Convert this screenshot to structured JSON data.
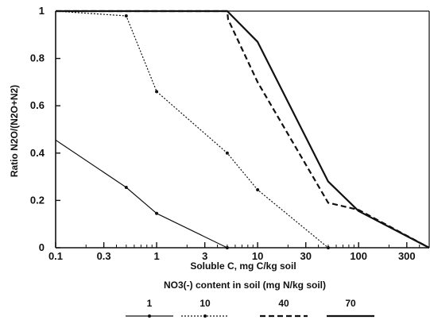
{
  "chart_data": {
    "type": "line",
    "xlabel": "Soluble C, mg C/kg soil",
    "ylabel": "Ratio N2O/(N2O+N2)",
    "x_scale": "log",
    "xlim": [
      0.1,
      500
    ],
    "ylim": [
      0,
      1
    ],
    "x_ticks": [
      0.1,
      0.3,
      1,
      3,
      10,
      30,
      100,
      300
    ],
    "x_tick_labels": [
      "0.1",
      "0.3",
      "1",
      "3",
      "10",
      "30",
      "100",
      "300"
    ],
    "y_ticks": [
      0,
      0.2,
      0.4,
      0.6,
      0.8,
      1
    ],
    "y_tick_labels": [
      "0",
      "0.2",
      "0.4",
      "0.6",
      "0.8",
      "1"
    ],
    "grid": false,
    "legend_title": "NO3(-) content in soil (mg N/kg soil)",
    "legend_position": "bottom",
    "series": [
      {
        "name": "1",
        "style": "solid-thin-markers",
        "color": "#111111",
        "points": [
          [
            0.1,
            0.455
          ],
          [
            0.5,
            0.255
          ],
          [
            1,
            0.145
          ],
          [
            5,
            0
          ]
        ]
      },
      {
        "name": "10",
        "style": "dotted-markers",
        "color": "#111111",
        "points": [
          [
            0.1,
            1
          ],
          [
            0.5,
            0.98
          ],
          [
            1,
            0.66
          ],
          [
            5,
            0.4
          ],
          [
            10,
            0.245
          ],
          [
            50,
            0
          ]
        ]
      },
      {
        "name": "40",
        "style": "dashed",
        "color": "#111111",
        "points": [
          [
            0.1,
            1
          ],
          [
            5,
            1
          ],
          [
            5.1,
            0.965
          ],
          [
            10,
            0.7
          ],
          [
            50,
            0.19
          ],
          [
            100,
            0.16
          ],
          [
            500,
            0
          ]
        ]
      },
      {
        "name": "70",
        "style": "solid-thick",
        "color": "#111111",
        "points": [
          [
            0.1,
            1
          ],
          [
            5,
            1
          ],
          [
            10,
            0.87
          ],
          [
            50,
            0.28
          ],
          [
            100,
            0.155
          ],
          [
            500,
            0
          ]
        ]
      }
    ]
  }
}
